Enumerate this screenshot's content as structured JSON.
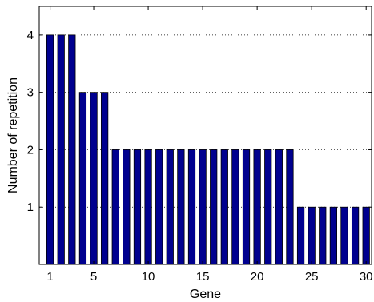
{
  "chart_data": {
    "type": "bar",
    "title": "",
    "xlabel": "Gene",
    "ylabel": "Number of repetition",
    "categories": [
      1,
      2,
      3,
      4,
      5,
      6,
      7,
      8,
      9,
      10,
      11,
      12,
      13,
      14,
      15,
      16,
      17,
      18,
      19,
      20,
      21,
      22,
      23,
      24,
      25,
      26,
      27,
      28,
      29,
      30
    ],
    "values": [
      4,
      4,
      4,
      3,
      3,
      3,
      2,
      2,
      2,
      2,
      2,
      2,
      2,
      2,
      2,
      2,
      2,
      2,
      2,
      2,
      2,
      2,
      2,
      1,
      1,
      1,
      1,
      1,
      1,
      1
    ],
    "xlim": [
      0,
      30.5
    ],
    "ylim": [
      0,
      4.5
    ],
    "xticks": [
      1,
      5,
      10,
      15,
      20,
      25,
      30
    ],
    "yticks": [
      1,
      2,
      3,
      4
    ],
    "grid": "horizontal dotted",
    "bar_color": "#00008f",
    "bar_edge_color": "#000000"
  }
}
